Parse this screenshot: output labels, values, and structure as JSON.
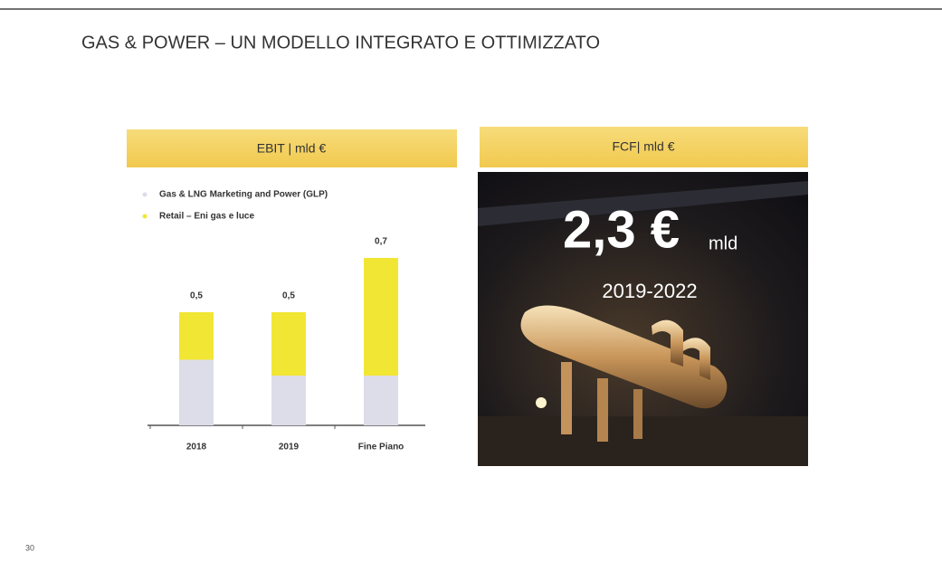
{
  "title": "GAS & POWER – UN MODELLO INTEGRATO E OTTIMIZZATO",
  "page_number": "30",
  "chart_data": {
    "type": "bar",
    "stacked": true,
    "title": "EBIT | mld €",
    "categories": [
      "2018",
      "2019",
      "Fine Piano"
    ],
    "series": [
      {
        "name": "Gas & LNG Marketing and Power (GLP)",
        "color": "#dcdde8",
        "values": [
          0.29,
          0.22,
          0.22
        ]
      },
      {
        "name": "Retail – Eni gas e luce",
        "color": "#f2e634",
        "values": [
          0.21,
          0.28,
          0.52
        ]
      }
    ],
    "total_labels": [
      "0,5",
      "0,5",
      "0,7"
    ]
  },
  "fcf_panel": {
    "title": "FCF| mld €",
    "value": "2,3 €",
    "unit": "mld",
    "period": "2019-2022"
  }
}
